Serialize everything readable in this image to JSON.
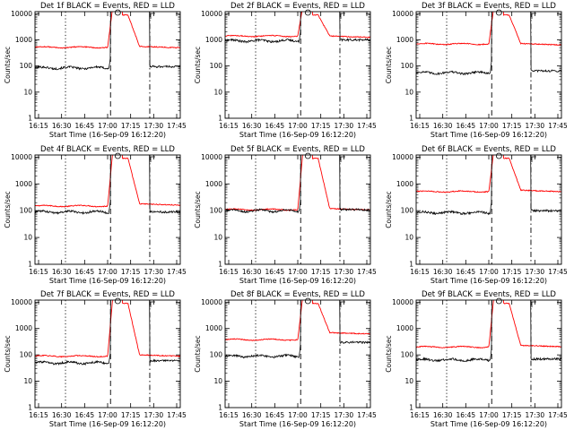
{
  "chart_data": {
    "type": "line",
    "x_tick_labels": [
      "16:15",
      "16:30",
      "16:45",
      "17:00",
      "17:15",
      "17:30",
      "17:45"
    ],
    "y_tick_labels": [
      "1",
      "10",
      "100",
      "1000",
      "10000"
    ],
    "ylabel": "Counts/sec",
    "xlabel": "Start Time (16-Sep-09 16:12:20)",
    "y_scale": "log",
    "ylim": [
      1,
      12000
    ],
    "x_range_min": [
      0,
      100
    ],
    "vertical_markers": [
      {
        "x_min": 21,
        "style": "dotted"
      },
      {
        "x_min": 52,
        "style": "dashed"
      },
      {
        "x_min": 79,
        "style": "dash-dot"
      }
    ],
    "series_colors": {
      "events": "#000000",
      "lld": "#ff0000"
    },
    "panels": [
      {
        "title": "Det 1f BLACK = Events, RED = LLD",
        "black_base": 85,
        "red_base": 520,
        "red_after": 560,
        "black_after": 95
      },
      {
        "title": "Det 2f BLACK = Events, RED = LLD",
        "black_base": 920,
        "red_base": 1400,
        "red_after": 1400,
        "black_after": 1000
      },
      {
        "title": "Det 3f BLACK = Events, RED = LLD",
        "black_base": 55,
        "red_base": 700,
        "red_after": 720,
        "black_after": 65
      },
      {
        "title": "Det 4f BLACK = Events, RED = LLD",
        "black_base": 90,
        "red_base": 150,
        "red_after": 180,
        "black_after": 90
      },
      {
        "title": "Det 5f BLACK = Events, RED = LLD",
        "black_base": 100,
        "red_base": 110,
        "red_after": 120,
        "black_after": 110
      },
      {
        "title": "Det 6f BLACK = Events, RED = LLD",
        "black_base": 85,
        "red_base": 520,
        "red_after": 580,
        "black_after": 100
      },
      {
        "title": "Det 7f BLACK = Events, RED = LLD",
        "black_base": 50,
        "red_base": 90,
        "red_after": 100,
        "black_after": 60
      },
      {
        "title": "Det 8f BLACK = Events, RED = LLD",
        "black_base": 90,
        "red_base": 380,
        "red_after": 700,
        "black_after": 300
      },
      {
        "title": "Det 9f BLACK = Events, RED = LLD",
        "black_base": 65,
        "red_base": 200,
        "red_after": 230,
        "black_after": 70
      }
    ]
  }
}
